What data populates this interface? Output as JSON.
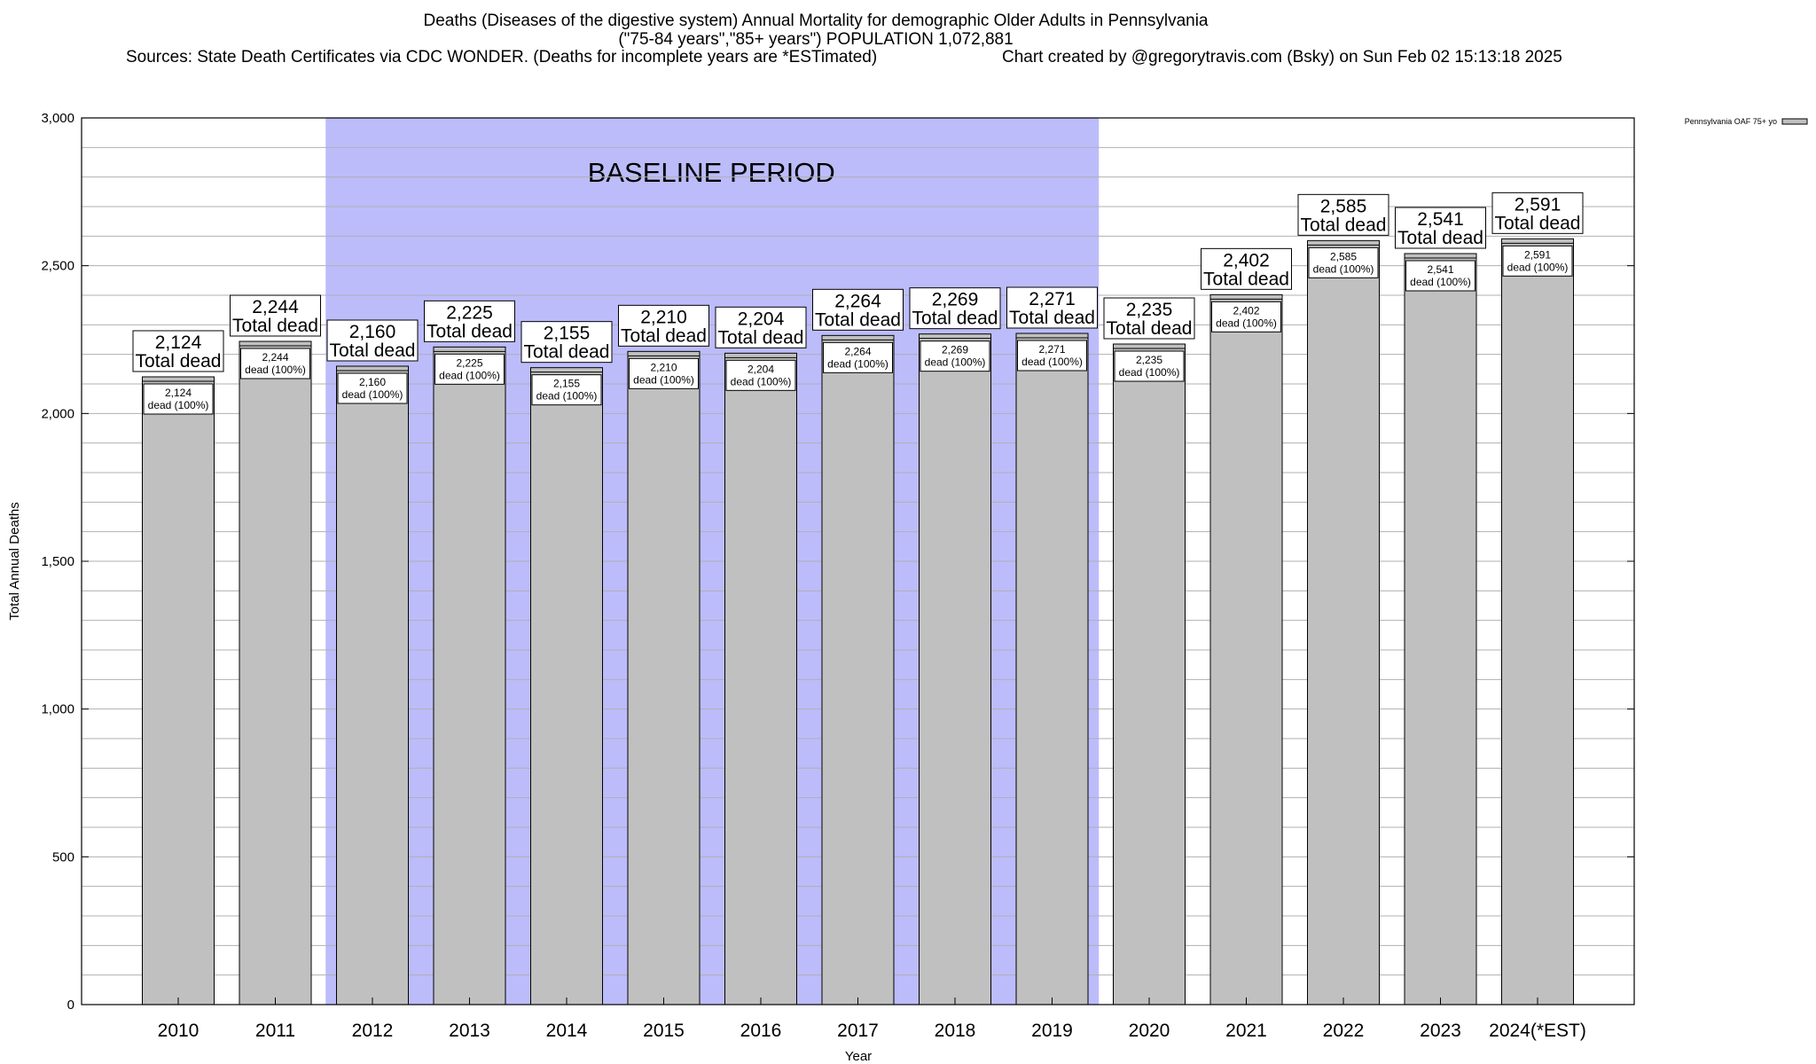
{
  "header": {
    "title_line1": "Deaths (Diseases of the digestive system) Annual Mortality for demographic Older Adults in Pennsylvania",
    "title_line2": "(\"75-84 years\",\"85+ years\") POPULATION 1,072,881",
    "sources": "Sources: State Death Certificates via CDC WONDER. (Deaths for incomplete years are *ESTimated)",
    "credit": "Chart created by @gregorytravis.com (Bsky) on Sun Feb 02 15:13:18 2025"
  },
  "chart_data": {
    "type": "bar",
    "xlabel": "Year",
    "ylabel": "Total Annual Deaths",
    "ylim": [
      0,
      3000
    ],
    "yticks": [
      0,
      500,
      1000,
      1500,
      2000,
      2500,
      3000
    ],
    "ytick_labels": [
      "0",
      "500",
      "1,000",
      "1,500",
      "2,000",
      "2,500",
      "3,000"
    ],
    "minor_grid_step": 100,
    "categories": [
      "2010",
      "2011",
      "2012",
      "2013",
      "2014",
      "2015",
      "2016",
      "2017",
      "2018",
      "2019",
      "2020",
      "2021",
      "2022",
      "2023",
      "2024(*EST)"
    ],
    "values": [
      2124,
      2244,
      2160,
      2225,
      2155,
      2210,
      2204,
      2264,
      2269,
      2271,
      2235,
      2402,
      2585,
      2541,
      2591
    ],
    "value_labels": [
      "2,124",
      "2,244",
      "2,160",
      "2,225",
      "2,155",
      "2,210",
      "2,204",
      "2,264",
      "2,269",
      "2,271",
      "2,235",
      "2,402",
      "2,585",
      "2,541",
      "2,591"
    ],
    "total_label_suffix": "Total dead",
    "inner_label_suffix": "dead (100%)",
    "baseline": {
      "label": "BASELINE PERIOD",
      "start": "2012",
      "end": "2019",
      "color": "#bcbcfb"
    },
    "bar_color": "#c0c0c0",
    "legend": {
      "label": "Pennsylvania OAF 75+ yo",
      "position": "top-right"
    }
  }
}
